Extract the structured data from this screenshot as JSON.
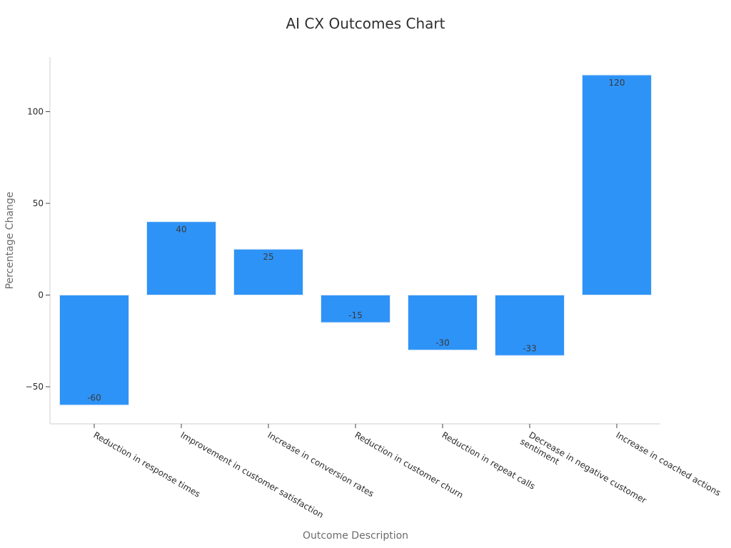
{
  "chart_data": {
    "type": "bar",
    "title": "AI CX Outcomes Chart",
    "xlabel": "Outcome Description",
    "ylabel": "Percentage Change",
    "categories": [
      [
        "Reduction in response times"
      ],
      [
        "Improvement in customer satisfaction"
      ],
      [
        "Increase in conversion rates"
      ],
      [
        "Reduction in customer churn"
      ],
      [
        "Reduction in repeat calls"
      ],
      [
        "Decrease in negative customer",
        "sentiment"
      ],
      [
        "Increase in coached actions"
      ]
    ],
    "values": [
      -60,
      40,
      25,
      -15,
      -30,
      -33,
      120
    ],
    "data_labels": [
      "-60",
      "40",
      "25",
      "-15",
      "-30",
      "-33",
      "120"
    ],
    "yticks": [
      -50,
      0,
      50,
      100
    ],
    "ytick_labels": [
      "−50",
      "0",
      "50",
      "100"
    ],
    "ylim": [
      -70,
      130
    ],
    "grid": false,
    "bar_color": "#2e93f7",
    "bar_edge_color": "#dce9f7"
  }
}
